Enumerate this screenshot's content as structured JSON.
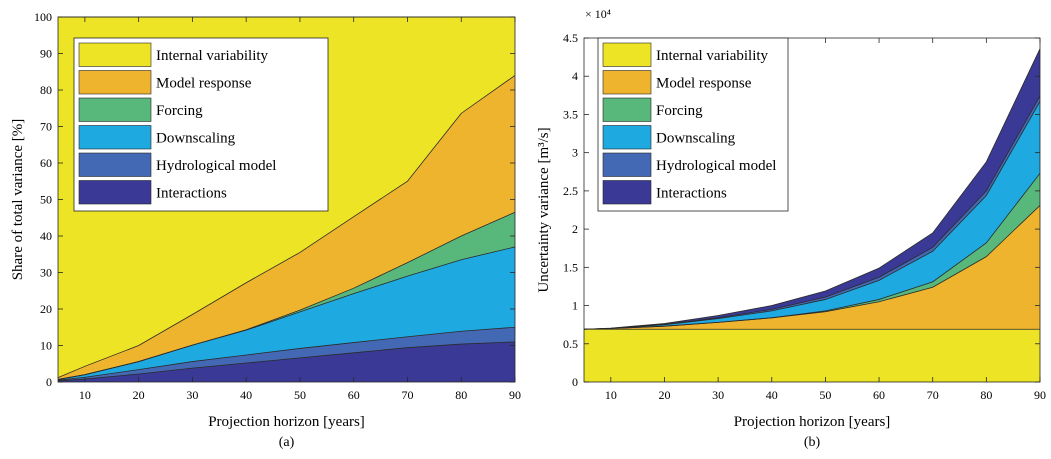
{
  "chart_data": [
    {
      "type": "area",
      "stacked": true,
      "caption": "(a)",
      "xlabel": "Projection horizon [years]",
      "ylabel": "Share of total variance [%]",
      "xlim": [
        5,
        90
      ],
      "ylim": [
        0,
        100
      ],
      "xticks": [
        10,
        20,
        30,
        40,
        50,
        60,
        70,
        80,
        90
      ],
      "yticks": [
        0,
        10,
        20,
        30,
        40,
        50,
        60,
        70,
        80,
        90,
        100
      ],
      "legend_position": "top-left",
      "x": [
        5,
        10,
        20,
        30,
        40,
        50,
        60,
        70,
        80,
        90
      ],
      "series": [
        {
          "name": "Interactions",
          "color": "#3a3a96",
          "values": [
            0.3,
            0.8,
            2.2,
            3.8,
            5.2,
            6.6,
            8.0,
            9.4,
            10.4,
            11.0
          ]
        },
        {
          "name": "Hydrological model",
          "color": "#4469b4",
          "values": [
            0.2,
            0.5,
            1.2,
            1.8,
            2.2,
            2.6,
            2.8,
            3.0,
            3.5,
            4.0
          ]
        },
        {
          "name": "Downscaling",
          "color": "#1fa9e1",
          "values": [
            0.2,
            0.7,
            2.2,
            4.5,
            6.8,
            10.0,
            13.4,
            16.6,
            19.6,
            22.0
          ]
        },
        {
          "name": "Forcing",
          "color": "#58b77b",
          "values": [
            0.0,
            0.0,
            0.0,
            0.0,
            0.1,
            0.5,
            1.5,
            3.7,
            6.5,
            9.5
          ]
        },
        {
          "name": "Model response",
          "color": "#efb42e",
          "values": [
            0.5,
            2.3,
            4.4,
            8.4,
            12.9,
            15.8,
            19.6,
            22.3,
            33.6,
            37.5
          ]
        },
        {
          "name": "Internal variability",
          "color": "#ece424",
          "values": [
            98.8,
            95.7,
            90.0,
            81.5,
            72.8,
            64.5,
            54.7,
            45.0,
            26.4,
            16.0
          ]
        }
      ]
    },
    {
      "type": "area",
      "stacked": true,
      "caption": "(b)",
      "xlabel": "Projection horizon [years]",
      "ylabel": "Uncertainty variance [m³/s]",
      "exponent_label": "× 10⁴",
      "xlim": [
        5,
        90
      ],
      "ylim": [
        0,
        4.5
      ],
      "xticks": [
        10,
        20,
        30,
        40,
        50,
        60,
        70,
        80,
        90
      ],
      "yticks": [
        0,
        0.5,
        1,
        1.5,
        2,
        2.5,
        3,
        3.5,
        4,
        4.5
      ],
      "legend_position": "top-left",
      "x": [
        5,
        10,
        20,
        30,
        40,
        50,
        60,
        70,
        80,
        90
      ],
      "series": [
        {
          "name": "Internal variability",
          "color": "#ece424",
          "values": [
            0.69,
            0.69,
            0.69,
            0.69,
            0.69,
            0.69,
            0.69,
            0.69,
            0.69,
            0.69
          ]
        },
        {
          "name": "Model response",
          "color": "#efb42e",
          "values": [
            0.0,
            0.01,
            0.04,
            0.09,
            0.15,
            0.23,
            0.36,
            0.55,
            0.95,
            1.62
          ]
        },
        {
          "name": "Forcing",
          "color": "#58b77b",
          "values": [
            0.0,
            0.0,
            0.0,
            0.0,
            0.0,
            0.01,
            0.03,
            0.07,
            0.18,
            0.42
          ]
        },
        {
          "name": "Downscaling",
          "color": "#1fa9e1",
          "values": [
            0.0,
            0.002,
            0.02,
            0.05,
            0.09,
            0.15,
            0.25,
            0.4,
            0.62,
            0.94
          ]
        },
        {
          "name": "Hydrological model",
          "color": "#4469b4",
          "values": [
            0.0,
            0.001,
            0.005,
            0.01,
            0.02,
            0.03,
            0.04,
            0.05,
            0.06,
            0.07
          ]
        },
        {
          "name": "Interactions",
          "color": "#3a3a96",
          "values": [
            0.0,
            0.002,
            0.01,
            0.03,
            0.05,
            0.08,
            0.12,
            0.19,
            0.38,
            0.62
          ]
        }
      ]
    }
  ]
}
